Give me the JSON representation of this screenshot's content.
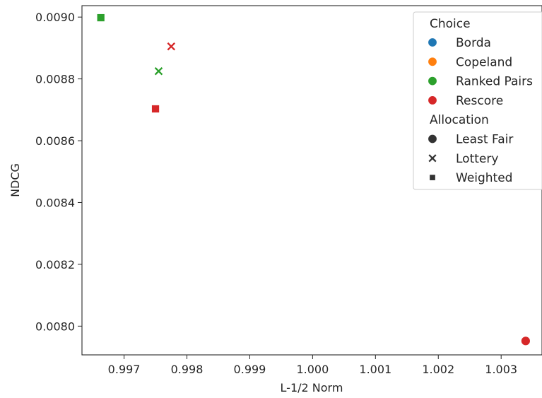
{
  "chart_data": {
    "type": "scatter",
    "xlabel": "L-1/2 Norm",
    "ylabel": "NDCG",
    "xlim": [
      0.99633,
      1.00365
    ],
    "ylim": [
      0.007907,
      0.009037
    ],
    "xticks": [
      0.997,
      0.998,
      0.999,
      1.0,
      1.001,
      1.002,
      1.003
    ],
    "xtick_labels": [
      "0.997",
      "0.998",
      "0.999",
      "1.000",
      "1.001",
      "1.002",
      "1.003"
    ],
    "yticks": [
      0.008,
      0.0082,
      0.0084,
      0.0086,
      0.0088,
      0.009
    ],
    "ytick_labels": [
      "0.0080",
      "0.0082",
      "0.0084",
      "0.0086",
      "0.0088",
      "0.0090"
    ],
    "grid": false,
    "legend_position": "top-right",
    "hue": {
      "title": "Choice",
      "entries": [
        {
          "label": "Borda",
          "color": "#1f77b4"
        },
        {
          "label": "Copeland",
          "color": "#ff7f0e"
        },
        {
          "label": "Ranked Pairs",
          "color": "#2ca02c"
        },
        {
          "label": "Rescore",
          "color": "#d62728"
        }
      ]
    },
    "style": {
      "title": "Allocation",
      "entries": [
        {
          "label": "Least Fair",
          "marker": "circle"
        },
        {
          "label": "Lottery",
          "marker": "x"
        },
        {
          "label": "Weighted",
          "marker": "square"
        }
      ]
    },
    "points": [
      {
        "x": 0.99663,
        "y": 0.008998,
        "choice": "Ranked Pairs",
        "allocation": "Weighted"
      },
      {
        "x": 0.99755,
        "y": 0.008825,
        "choice": "Ranked Pairs",
        "allocation": "Lottery"
      },
      {
        "x": 0.99775,
        "y": 0.008905,
        "choice": "Rescore",
        "allocation": "Lottery"
      },
      {
        "x": 0.9975,
        "y": 0.008703,
        "choice": "Rescore",
        "allocation": "Weighted"
      },
      {
        "x": 1.00339,
        "y": 0.007952,
        "choice": "Rescore",
        "allocation": "Least Fair"
      }
    ]
  }
}
